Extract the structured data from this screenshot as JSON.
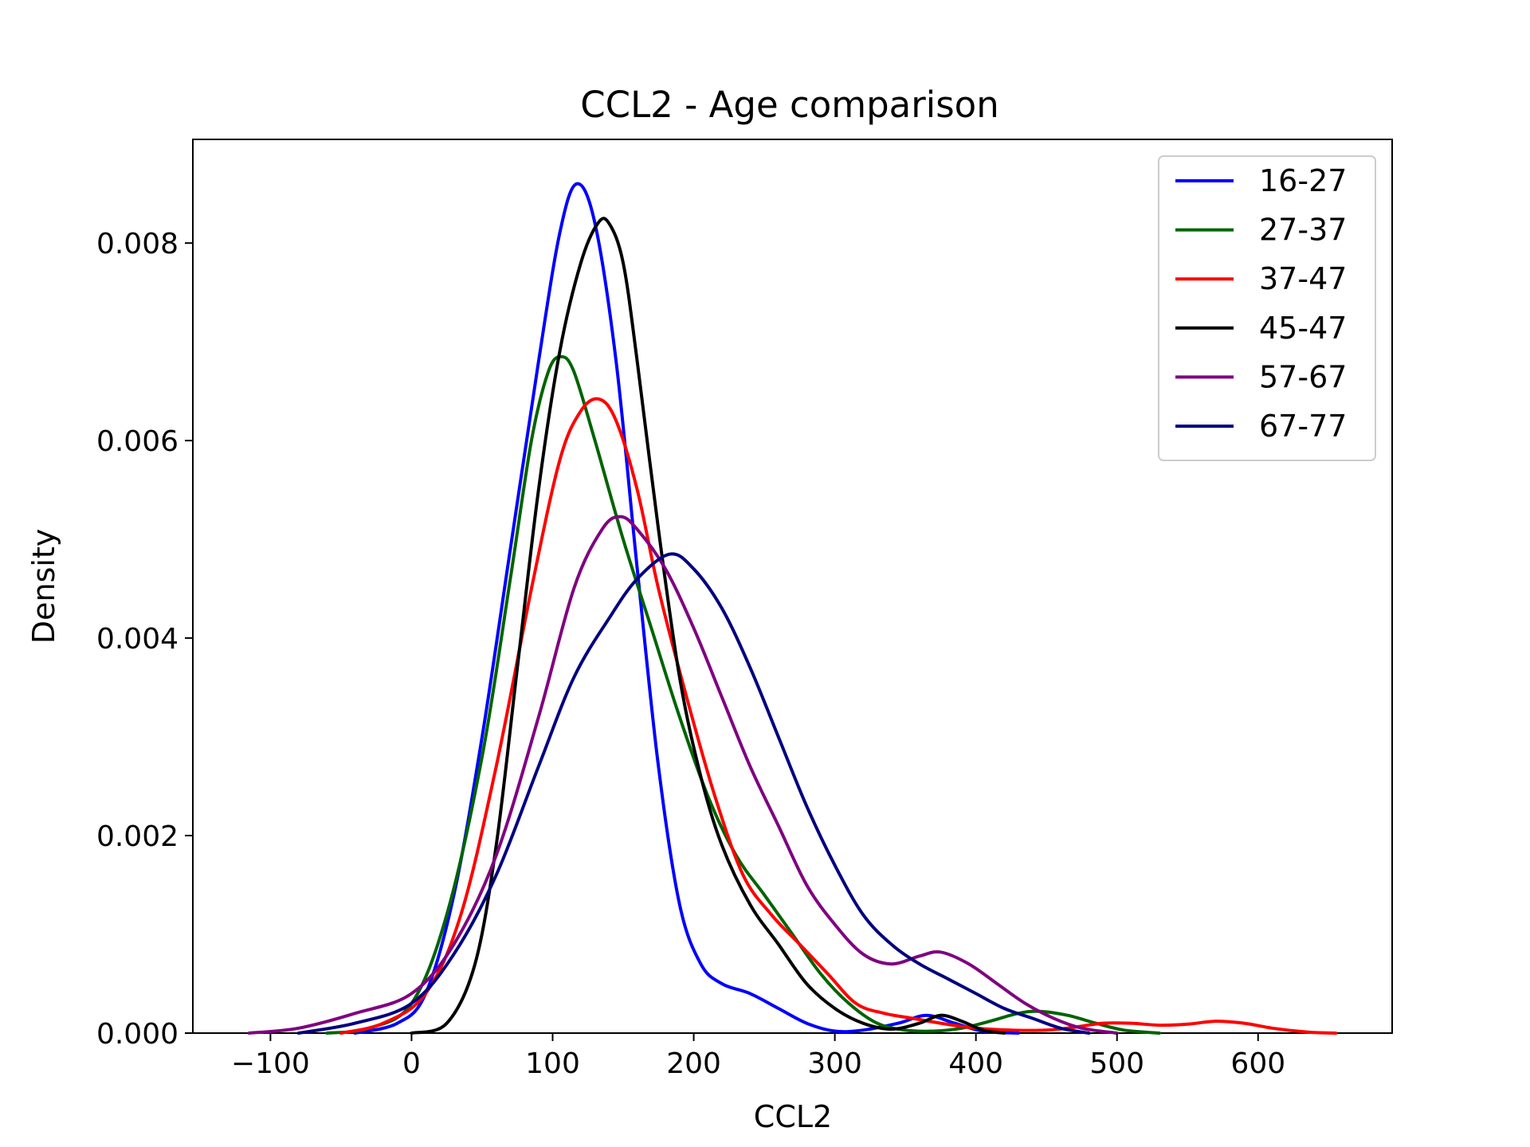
{
  "chart_data": {
    "type": "line",
    "title": "CCL2 - Age comparison",
    "xlabel": "CCL2",
    "ylabel": "Density",
    "xlim": [
      -155,
      695
    ],
    "ylim": [
      0,
      0.00905
    ],
    "xticks": [
      -100,
      0,
      100,
      200,
      300,
      400,
      500,
      600
    ],
    "xtick_labels": [
      "−100",
      "0",
      "100",
      "200",
      "300",
      "400",
      "500",
      "600"
    ],
    "yticks": [
      0.0,
      0.002,
      0.004,
      0.006,
      0.008
    ],
    "ytick_labels": [
      "0.000",
      "0.002",
      "0.004",
      "0.006",
      "0.008"
    ],
    "grid": false,
    "legend_position": "top-right",
    "series": [
      {
        "name": "16-27",
        "color": "#0000ff",
        "points": [
          [
            -40,
            0.0
          ],
          [
            -10,
            0.0001
          ],
          [
            10,
            0.0004
          ],
          [
            30,
            0.0014
          ],
          [
            50,
            0.003
          ],
          [
            70,
            0.0049
          ],
          [
            90,
            0.0068
          ],
          [
            105,
            0.0081
          ],
          [
            117,
            0.0086
          ],
          [
            130,
            0.0082
          ],
          [
            145,
            0.0068
          ],
          [
            160,
            0.0047
          ],
          [
            175,
            0.0027
          ],
          [
            190,
            0.0013
          ],
          [
            205,
            0.0007
          ],
          [
            220,
            0.0005
          ],
          [
            240,
            0.0004
          ],
          [
            260,
            0.00025
          ],
          [
            280,
            0.0001
          ],
          [
            300,
            2e-05
          ],
          [
            320,
            3e-05
          ],
          [
            345,
            0.0001
          ],
          [
            365,
            0.00018
          ],
          [
            385,
            0.0001
          ],
          [
            405,
            2e-05
          ],
          [
            430,
            0.0
          ]
        ]
      },
      {
        "name": "27-37",
        "color": "#006400",
        "points": [
          [
            -60,
            0.0
          ],
          [
            -30,
            5e-05
          ],
          [
            0,
            0.0003
          ],
          [
            25,
            0.0012
          ],
          [
            50,
            0.0028
          ],
          [
            70,
            0.0046
          ],
          [
            85,
            0.006
          ],
          [
            97,
            0.0067
          ],
          [
            106,
            0.00685
          ],
          [
            115,
            0.0067
          ],
          [
            130,
            0.006
          ],
          [
            150,
            0.005
          ],
          [
            170,
            0.0041
          ],
          [
            190,
            0.0032
          ],
          [
            210,
            0.0024
          ],
          [
            230,
            0.0018
          ],
          [
            250,
            0.0014
          ],
          [
            270,
            0.001
          ],
          [
            290,
            0.0006
          ],
          [
            310,
            0.0003
          ],
          [
            330,
            0.0001
          ],
          [
            350,
            3e-05
          ],
          [
            370,
            2e-05
          ],
          [
            390,
            5e-05
          ],
          [
            410,
            0.00012
          ],
          [
            430,
            0.0002
          ],
          [
            445,
            0.00022
          ],
          [
            465,
            0.00018
          ],
          [
            485,
            0.0001
          ],
          [
            505,
            3e-05
          ],
          [
            530,
            0.0
          ]
        ]
      },
      {
        "name": "37-47",
        "color": "#ff0000",
        "points": [
          [
            -50,
            0.0
          ],
          [
            -20,
            0.0001
          ],
          [
            10,
            0.0004
          ],
          [
            35,
            0.0012
          ],
          [
            60,
            0.0027
          ],
          [
            85,
            0.0045
          ],
          [
            105,
            0.0058
          ],
          [
            120,
            0.0063
          ],
          [
            133,
            0.00642
          ],
          [
            145,
            0.0062
          ],
          [
            160,
            0.0055
          ],
          [
            175,
            0.0045
          ],
          [
            195,
            0.0034
          ],
          [
            215,
            0.0024
          ],
          [
            235,
            0.0016
          ],
          [
            255,
            0.0012
          ],
          [
            275,
            0.0009
          ],
          [
            295,
            0.0006
          ],
          [
            315,
            0.0003
          ],
          [
            335,
            0.0002
          ],
          [
            355,
            0.00015
          ],
          [
            375,
            0.0001
          ],
          [
            400,
            5e-05
          ],
          [
            425,
            3e-05
          ],
          [
            450,
            3e-05
          ],
          [
            470,
            6e-05
          ],
          [
            490,
            0.0001
          ],
          [
            510,
            0.0001
          ],
          [
            530,
            8e-05
          ],
          [
            550,
            9e-05
          ],
          [
            570,
            0.00012
          ],
          [
            590,
            0.0001
          ],
          [
            610,
            5e-05
          ],
          [
            635,
            1e-05
          ],
          [
            655,
            0.0
          ]
        ]
      },
      {
        "name": "45-47",
        "color": "#000000",
        "points": [
          [
            0,
            0.0
          ],
          [
            25,
            0.0001
          ],
          [
            45,
            0.0007
          ],
          [
            60,
            0.0019
          ],
          [
            75,
            0.0037
          ],
          [
            90,
            0.0055
          ],
          [
            105,
            0.0069
          ],
          [
            120,
            0.0078
          ],
          [
            132,
            0.0082
          ],
          [
            140,
            0.0082
          ],
          [
            150,
            0.0078
          ],
          [
            160,
            0.0068
          ],
          [
            175,
            0.0051
          ],
          [
            190,
            0.0036
          ],
          [
            205,
            0.0026
          ],
          [
            220,
            0.0019
          ],
          [
            240,
            0.0013
          ],
          [
            260,
            0.0009
          ],
          [
            280,
            0.0005
          ],
          [
            300,
            0.00025
          ],
          [
            320,
            0.0001
          ],
          [
            340,
            4e-05
          ],
          [
            360,
            0.0001
          ],
          [
            375,
            0.00018
          ],
          [
            390,
            0.00012
          ],
          [
            405,
            3e-05
          ],
          [
            420,
            0.0
          ]
        ]
      },
      {
        "name": "57-67",
        "color": "#800080",
        "points": [
          [
            -115,
            0.0
          ],
          [
            -80,
            5e-05
          ],
          [
            -40,
            0.0002
          ],
          [
            0,
            0.0004
          ],
          [
            30,
            0.0009
          ],
          [
            60,
            0.0018
          ],
          [
            90,
            0.0032
          ],
          [
            115,
            0.0045
          ],
          [
            135,
            0.0051
          ],
          [
            148,
            0.00523
          ],
          [
            160,
            0.0051
          ],
          [
            180,
            0.0047
          ],
          [
            200,
            0.0041
          ],
          [
            220,
            0.0034
          ],
          [
            240,
            0.0027
          ],
          [
            260,
            0.0021
          ],
          [
            280,
            0.0015
          ],
          [
            300,
            0.0011
          ],
          [
            320,
            0.0008
          ],
          [
            340,
            0.0007
          ],
          [
            360,
            0.00078
          ],
          [
            375,
            0.00082
          ],
          [
            395,
            0.0007
          ],
          [
            415,
            0.0005
          ],
          [
            435,
            0.0003
          ],
          [
            455,
            0.00015
          ],
          [
            475,
            5e-05
          ],
          [
            500,
            0.0
          ]
        ]
      },
      {
        "name": "67-77",
        "color": "#000080",
        "points": [
          [
            -80,
            0.0
          ],
          [
            -40,
            0.0001
          ],
          [
            0,
            0.0003
          ],
          [
            30,
            0.0008
          ],
          [
            60,
            0.0016
          ],
          [
            90,
            0.0027
          ],
          [
            115,
            0.0036
          ],
          [
            140,
            0.0042
          ],
          [
            160,
            0.0046
          ],
          [
            183,
            0.00485
          ],
          [
            200,
            0.0047
          ],
          [
            220,
            0.0043
          ],
          [
            240,
            0.0037
          ],
          [
            260,
            0.003
          ],
          [
            280,
            0.0023
          ],
          [
            300,
            0.0017
          ],
          [
            320,
            0.0012
          ],
          [
            340,
            0.0009
          ],
          [
            360,
            0.0007
          ],
          [
            380,
            0.00055
          ],
          [
            400,
            0.0004
          ],
          [
            420,
            0.00025
          ],
          [
            440,
            0.00015
          ],
          [
            460,
            5e-05
          ],
          [
            480,
            0.0
          ]
        ]
      }
    ]
  }
}
